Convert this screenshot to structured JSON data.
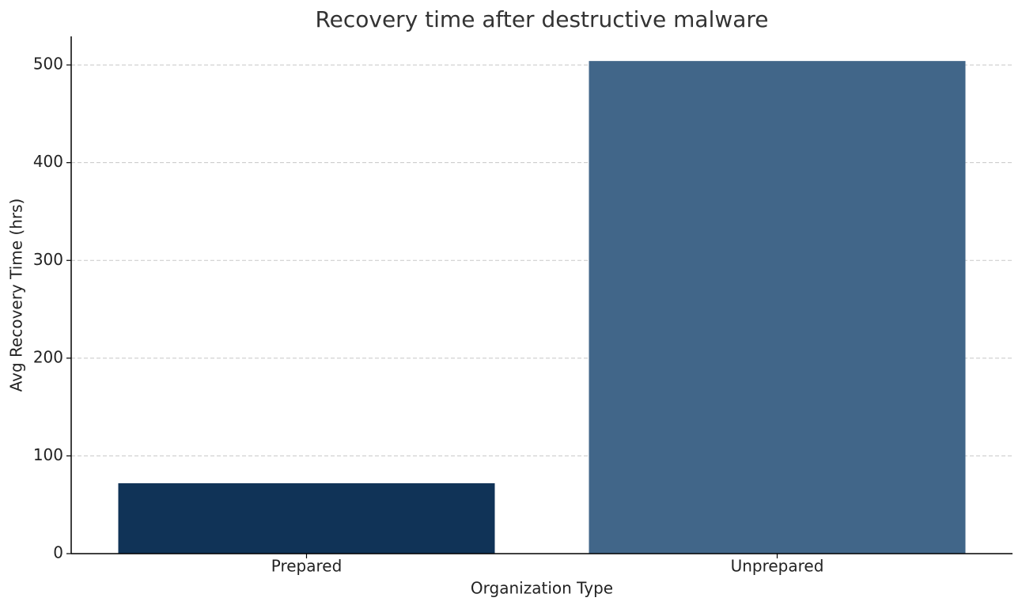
{
  "chart_data": {
    "type": "bar",
    "title": "Recovery time after destructive malware",
    "x_label": "Organization Type",
    "y_label": "Avg Recovery Time (hrs)",
    "categories": [
      "Prepared",
      "Unprepared"
    ],
    "values": [
      72,
      504
    ],
    "colors": [
      "#103357",
      "#416689"
    ],
    "ylim": [
      0,
      529.2
    ],
    "yticks": [
      0,
      100,
      200,
      300,
      400,
      500
    ],
    "grid": true
  }
}
